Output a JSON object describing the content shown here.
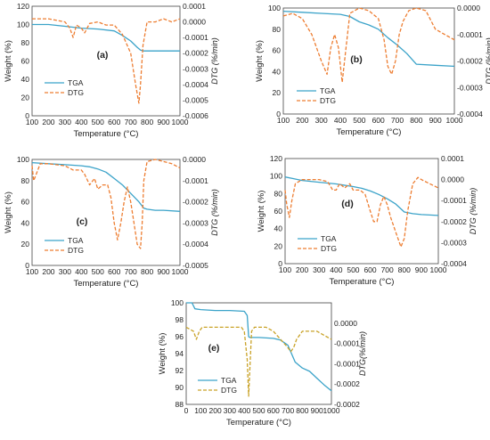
{
  "chart_data": [
    {
      "id": "a",
      "type": "line",
      "panel_label": "(a)",
      "xlabel": "Temperature (°C)",
      "ylabel": "Weight (%)",
      "y2label": "DTG (%/min)",
      "xlim": [
        100,
        1000
      ],
      "ylim": [
        0,
        120
      ],
      "y2lim": [
        -0.0006,
        0.0001
      ],
      "x_ticks": [
        "100",
        "200",
        "300",
        "400",
        "500",
        "600",
        "700",
        "800",
        "900",
        "1000"
      ],
      "y_ticks": [
        "0",
        "20",
        "40",
        "60",
        "80",
        "100",
        "120"
      ],
      "y2_ticks": [
        "-0.0006",
        "-0.0005",
        "-0.0004",
        "-0.0003",
        "-0.0002",
        "-0.0001",
        "0.0000",
        "0.0001"
      ],
      "legend": [
        "TGA",
        "DTG"
      ],
      "legend_position": "left",
      "series": [
        {
          "name": "TGA",
          "axis": "left",
          "color": "#3ba3c9",
          "dash": "solid",
          "x": [
            100,
            200,
            300,
            400,
            500,
            600,
            650,
            700,
            740,
            760,
            780,
            800,
            900,
            1000
          ],
          "y": [
            100,
            100,
            98,
            96,
            95,
            93,
            88,
            82,
            75,
            72,
            71,
            71,
            71,
            71
          ]
        },
        {
          "name": "DTG",
          "axis": "right",
          "color": "#ed7d31",
          "dash": "dashed",
          "x": [
            100,
            200,
            300,
            330,
            350,
            370,
            400,
            420,
            450,
            500,
            550,
            600,
            650,
            700,
            730,
            750,
            760,
            775,
            800,
            850,
            900,
            950,
            1000
          ],
          "y": [
            2e-05,
            2e-05,
            0.0,
            -4e-05,
            -0.0001,
            -2e-05,
            -4e-05,
            -7e-05,
            -1e-05,
            0.0,
            -2e-05,
            -2e-05,
            -8e-05,
            -0.0002,
            -0.0004,
            -0.00052,
            -0.0004,
            -0.00015,
            0.0,
            0.0,
            2e-05,
            0.0,
            2e-05
          ]
        }
      ]
    },
    {
      "id": "b",
      "type": "line",
      "panel_label": "(b)",
      "xlabel": "Temperature (°C)",
      "ylabel": "Weight (%)",
      "y2label": "DTG (%/min)",
      "xlim": [
        100,
        1000
      ],
      "ylim": [
        0,
        100
      ],
      "y2lim": [
        -0.0004,
        0.0
      ],
      "x_ticks": [
        "100",
        "200",
        "300",
        "400",
        "500",
        "600",
        "700",
        "800",
        "900",
        "1000"
      ],
      "y_ticks": [
        "0",
        "20",
        "40",
        "60",
        "80",
        "100"
      ],
      "y2_ticks": [
        "-0.0004",
        "-0.0003",
        "-0.0002",
        "-0.0001",
        "0.0000"
      ],
      "legend": [
        "TGA",
        "DTG"
      ],
      "legend_position": "left",
      "series": [
        {
          "name": "TGA",
          "axis": "left",
          "color": "#3ba3c9",
          "dash": "solid",
          "x": [
            100,
            200,
            300,
            400,
            450,
            500,
            550,
            600,
            650,
            700,
            750,
            800,
            900,
            1000
          ],
          "y": [
            97,
            96,
            95,
            94,
            92,
            87,
            84,
            80,
            72,
            65,
            57,
            47,
            46,
            45
          ]
        },
        {
          "name": "DTG",
          "axis": "right",
          "color": "#ed7d31",
          "dash": "dashed",
          "x": [
            100,
            150,
            200,
            250,
            300,
            330,
            350,
            370,
            390,
            410,
            430,
            450,
            500,
            550,
            600,
            630,
            650,
            670,
            690,
            710,
            730,
            760,
            800,
            850,
            900,
            950,
            1000
          ],
          "y": [
            -3e-05,
            -2e-05,
            -4e-05,
            -0.0001,
            -0.0002,
            -0.00025,
            -0.00015,
            -0.0001,
            -0.00015,
            -0.00028,
            -0.00015,
            -2e-05,
            0.0,
            -1e-05,
            -4e-05,
            -0.00012,
            -0.00022,
            -0.00025,
            -0.0002,
            -0.0001,
            -5e-05,
            -1e-05,
            0.0,
            -1e-05,
            -8e-05,
            -0.0001,
            -0.00012
          ]
        }
      ]
    },
    {
      "id": "c",
      "type": "line",
      "panel_label": "(c)",
      "xlabel": "Temperature (°C)",
      "ylabel": "Weight (%)",
      "y2label": "DTG (%/min)",
      "xlim": [
        100,
        1000
      ],
      "ylim": [
        0,
        100
      ],
      "y2lim": [
        -0.0005,
        0.0
      ],
      "x_ticks": [
        "100",
        "200",
        "300",
        "400",
        "500",
        "600",
        "700",
        "800",
        "900",
        "1000"
      ],
      "y_ticks": [
        "0",
        "20",
        "40",
        "60",
        "80",
        "100"
      ],
      "y2_ticks": [
        "-0.0005",
        "-0.0004",
        "-0.0003",
        "-0.0002",
        "-0.0001",
        "0.0000"
      ],
      "legend": [
        "TGA",
        "DTG"
      ],
      "legend_position": "bottom-left",
      "series": [
        {
          "name": "TGA",
          "axis": "left",
          "color": "#3ba3c9",
          "dash": "solid",
          "x": [
            100,
            200,
            300,
            400,
            450,
            500,
            550,
            600,
            650,
            700,
            750,
            780,
            800,
            850,
            900,
            1000
          ],
          "y": [
            97,
            96,
            95,
            94,
            93,
            91,
            88,
            82,
            76,
            68,
            60,
            54,
            53,
            52,
            52,
            51
          ]
        },
        {
          "name": "DTG",
          "axis": "right",
          "color": "#ed7d31",
          "dash": "dashed",
          "x": [
            100,
            110,
            125,
            150,
            200,
            300,
            350,
            400,
            420,
            450,
            480,
            500,
            530,
            560,
            580,
            600,
            620,
            640,
            660,
            680,
            700,
            720,
            740,
            760,
            770,
            780,
            800,
            850,
            900,
            950,
            1000
          ],
          "y": [
            -3e-05,
            -0.0001,
            -7e-05,
            -2e-05,
            -2e-05,
            -3e-05,
            -5e-05,
            -5e-05,
            -7e-05,
            -0.00012,
            -9e-05,
            -0.00014,
            -0.00012,
            -0.00012,
            -0.00018,
            -0.0003,
            -0.00038,
            -0.0003,
            -0.0002,
            -0.00013,
            -0.0002,
            -0.0003,
            -0.0004,
            -0.00042,
            -0.0003,
            -0.0001,
            -1e-05,
            0.0,
            -1e-05,
            -2e-05,
            -4e-05
          ]
        }
      ]
    },
    {
      "id": "d",
      "type": "line",
      "panel_label": "(d)",
      "xlabel": "Temperature (°C)",
      "ylabel": "Weight (%)",
      "y2label": "DTG (%/min)",
      "xlim": [
        100,
        1000
      ],
      "ylim": [
        0,
        120
      ],
      "y2lim": [
        -0.0004,
        0.0001
      ],
      "x_ticks": [
        "100",
        "200",
        "300",
        "400",
        "500",
        "600",
        "700",
        "800",
        "900",
        "1000"
      ],
      "y_ticks": [
        "0",
        "20",
        "40",
        "60",
        "80",
        "100",
        "120"
      ],
      "y2_ticks": [
        "-0.0004",
        "-0.0003",
        "-0.0002",
        "-0.0001",
        "0.0000",
        "0.0001"
      ],
      "legend": [
        "TGA",
        "DTG"
      ],
      "legend_position": "bottom-left",
      "series": [
        {
          "name": "TGA",
          "axis": "left",
          "color": "#3ba3c9",
          "dash": "solid",
          "x": [
            100,
            150,
            200,
            300,
            400,
            500,
            550,
            600,
            650,
            700,
            750,
            800,
            850,
            900,
            1000
          ],
          "y": [
            99,
            97,
            95,
            93,
            91,
            88,
            86,
            83,
            79,
            74,
            68,
            59,
            57,
            56,
            55
          ]
        },
        {
          "name": "DTG",
          "axis": "right",
          "color": "#ed7d31",
          "dash": "dashed",
          "x": [
            100,
            110,
            125,
            140,
            160,
            200,
            300,
            350,
            380,
            400,
            420,
            450,
            480,
            500,
            540,
            570,
            600,
            620,
            640,
            660,
            680,
            700,
            720,
            750,
            780,
            800,
            820,
            850,
            880,
            900,
            950,
            1000
          ],
          "y": [
            -5e-05,
            -0.00012,
            -0.00018,
            -0.0001,
            -2e-05,
            0.0,
            0.0,
            -1e-05,
            -5e-05,
            -5e-05,
            -2e-05,
            -4e-05,
            -2e-05,
            -5e-05,
            -5e-05,
            -7e-05,
            -0.00015,
            -0.0002,
            -0.0002,
            -0.00012,
            -8e-05,
            -0.00012,
            -0.00018,
            -0.00025,
            -0.00032,
            -0.00028,
            -0.00015,
            -2e-05,
            1e-05,
            0.0,
            -2e-05,
            -4e-05
          ]
        }
      ]
    },
    {
      "id": "e",
      "type": "line",
      "panel_label": "(e)",
      "xlabel": "Temperature (°C)",
      "ylabel": "Weight (%)",
      "y2label": "DTG(%/min)",
      "xlim": [
        0,
        1000
      ],
      "ylim": [
        88,
        100
      ],
      "y2lim": [
        -0.0002,
        5e-05
      ],
      "x_ticks": [
        "0",
        "100",
        "200",
        "300",
        "400",
        "500",
        "600",
        "700",
        "800",
        "900",
        "1000"
      ],
      "y_ticks": [
        "88",
        "90",
        "92",
        "94",
        "96",
        "98",
        "100"
      ],
      "y2_ticks": [
        "-0.0002",
        "-0.0002",
        "-0.0001",
        "-0.0001",
        "0.0000",
        ""
      ],
      "legend": [
        "TGA",
        "DTG"
      ],
      "legend_position": "bottom-left",
      "series": [
        {
          "name": "TGA",
          "axis": "left",
          "color": "#3ba3c9",
          "dash": "solid",
          "x": [
            0,
            40,
            60,
            100,
            200,
            300,
            400,
            420,
            430,
            440,
            500,
            600,
            650,
            700,
            720,
            750,
            800,
            850,
            900,
            950,
            1000
          ],
          "y": [
            100,
            100,
            99.3,
            99.2,
            99.1,
            99.1,
            99.0,
            98.5,
            96.0,
            95.9,
            95.9,
            95.8,
            95.6,
            95.0,
            94.2,
            93.0,
            92.3,
            91.9,
            91.1,
            90.3,
            89.6
          ]
        },
        {
          "name": "DTG",
          "axis": "right",
          "color": "#c9a227",
          "dash": "dashed",
          "x": [
            0,
            50,
            70,
            90,
            110,
            150,
            200,
            300,
            380,
            400,
            420,
            430,
            440,
            450,
            470,
            500,
            550,
            600,
            650,
            700,
            720,
            740,
            760,
            800,
            850,
            900,
            950,
            1000
          ],
          "y": [
            -1e-05,
            -2e-05,
            -4e-05,
            -2e-05,
            -1e-05,
            -1e-05,
            -1e-05,
            -1e-05,
            -1e-05,
            -2e-05,
            -9e-05,
            -0.00018,
            -0.0001,
            -2e-05,
            -1e-05,
            -1e-05,
            -1e-05,
            -2e-05,
            -4e-05,
            -6e-05,
            -7e-05,
            -6e-05,
            -4e-05,
            -2e-05,
            -2e-05,
            -2e-05,
            -3e-05,
            -4e-05
          ]
        }
      ]
    }
  ]
}
